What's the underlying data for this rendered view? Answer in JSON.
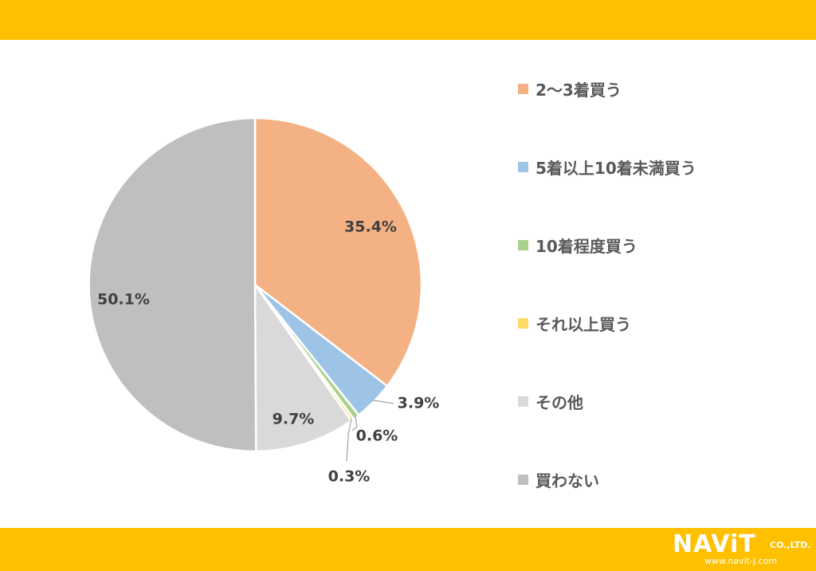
{
  "chart_data": {
    "type": "pie",
    "categories": [
      "2～3着買う",
      "5着以上10着未満買う",
      "10着程度買う",
      "それ以上買う",
      "その他",
      "買わない"
    ],
    "values": [
      35.4,
      3.9,
      0.6,
      0.3,
      9.7,
      50.1
    ],
    "labels": [
      "35.4%",
      "3.9%",
      "0.6%",
      "0.3%",
      "9.7%",
      "50.1%"
    ],
    "colors": [
      "#f4b183",
      "#9dc3e6",
      "#a9d18e",
      "#ffd966",
      "#d9d9d9",
      "#bfbfbf"
    ],
    "start": "12 o'clock",
    "direction": "clockwise",
    "legend_position": "right"
  },
  "legend": {
    "items": [
      {
        "label": "2～3着買う",
        "color": "#f4b183"
      },
      {
        "label": "5着以上10着未満買う",
        "color": "#9dc3e6"
      },
      {
        "label": "10着程度買う",
        "color": "#a9d18e"
      },
      {
        "label": "それ以上買う",
        "color": "#ffd966"
      },
      {
        "label": "その他",
        "color": "#d9d9d9"
      },
      {
        "label": "買わない",
        "color": "#bfbfbf"
      }
    ]
  },
  "brand": {
    "mark": "NAViT",
    "suffix": "CO.,LTD.",
    "url": "www.navit-j.com",
    "band_color": "#ffc000"
  }
}
